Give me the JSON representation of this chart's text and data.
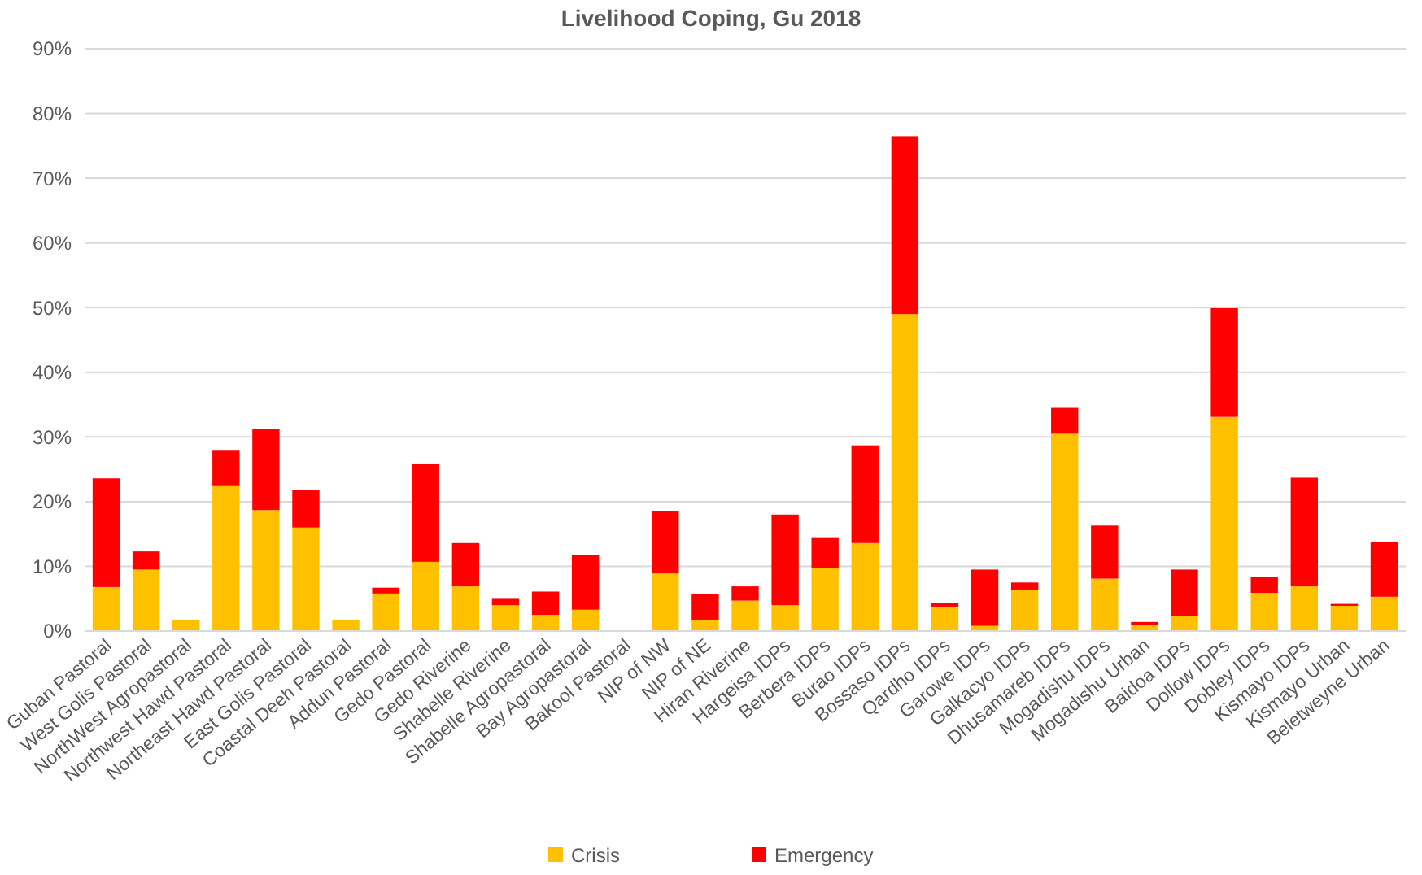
{
  "chart_data": {
    "type": "bar",
    "title": "Livelihood Coping, Gu 2018",
    "stacked": true,
    "grid": "y",
    "legend": "bottom",
    "categories": [
      "Guban Pastoral",
      "West Golis Pastoral",
      "NorthWest Agropastoral",
      "Northwest Hawd Pastoral",
      "Northeast Hawd Pastoral",
      "East Golis Pastoral",
      "Coastal Deeh Pastoral",
      "Addun Pastoral",
      "Gedo Pastoral",
      "Gedo Riverine",
      "Shabelle Riverine",
      "Shabelle Agropastoral",
      "Bay Agropastoral",
      "Bakool Pastoral",
      "NIP of NW",
      "NIP of NE",
      "Hiran Riverine",
      "Hargeisa IDPs",
      "Berbera IDPs",
      "Burao IDPs",
      "Bossaso IDPs",
      "Qardho IDPs",
      "Garowe IDPs",
      "Galkacyo IDPs",
      "Dhusamareb IDPs",
      "Mogadishu IDPs",
      "Mogadishu Urban",
      "Baidoa IDPs",
      "Dollow IDPs",
      "Dobley IDPs",
      "Kismayo IDPs",
      "Kismayo Urban",
      "Beletweyne Urban"
    ],
    "ylim": [
      0,
      90
    ],
    "yticks": [
      {
        "value": 0,
        "label": "0%"
      },
      {
        "value": 10,
        "label": "10%"
      },
      {
        "value": 20,
        "label": "20%"
      },
      {
        "value": 30,
        "label": "30%"
      },
      {
        "value": 40,
        "label": "40%"
      },
      {
        "value": 50,
        "label": "50%"
      },
      {
        "value": 60,
        "label": "60%"
      },
      {
        "value": 70,
        "label": "70%"
      },
      {
        "value": 80,
        "label": "80%"
      },
      {
        "value": 90,
        "label": "90%"
      }
    ],
    "series": [
      {
        "name": "Crisis",
        "color": "#ffc000",
        "values": [
          6.8,
          9.5,
          1.7,
          22.4,
          18.7,
          16,
          1.7,
          5.8,
          10.7,
          6.9,
          4.0,
          2.5,
          3.3,
          0,
          8.9,
          1.7,
          4.7,
          4.0,
          9.8,
          13.6,
          49.0,
          3.7,
          0.8,
          6.3,
          30.5,
          8.1,
          1.0,
          2.3,
          33.1,
          5.9,
          6.9,
          3.9,
          5.3
        ]
      },
      {
        "name": "Emergency",
        "color": "#ff0000",
        "values": [
          16.8,
          2.8,
          0,
          5.6,
          12.6,
          5.8,
          0,
          0.9,
          15.2,
          6.7,
          1.1,
          3.6,
          8.5,
          0,
          9.7,
          4.0,
          2.2,
          14.0,
          4.7,
          15.1,
          27.5,
          0.7,
          8.7,
          1.2,
          4.0,
          8.2,
          0.4,
          7.2,
          16.8,
          2.4,
          16.8,
          0.3,
          8.5
        ]
      }
    ]
  }
}
